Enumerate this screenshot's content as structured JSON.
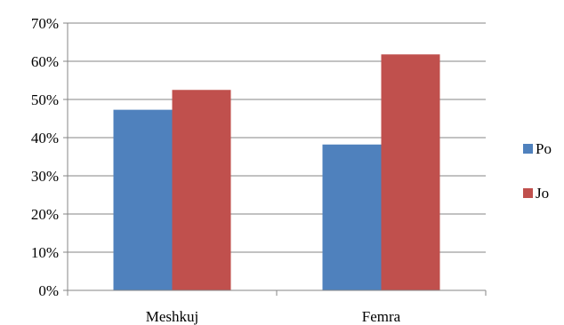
{
  "chart_data": {
    "type": "bar",
    "title": "",
    "xlabel": "",
    "ylabel": "",
    "categories": [
      "Meshkuj",
      "Femra"
    ],
    "series": [
      {
        "name": "Po",
        "values": [
          0.473,
          0.382
        ],
        "color": "#4f81bd"
      },
      {
        "name": "Jo",
        "values": [
          0.525,
          0.618
        ],
        "color": "#c0504d"
      }
    ],
    "ylim": [
      0,
      0.7
    ],
    "yticks": [
      "0%",
      "10%",
      "20%",
      "30%",
      "40%",
      "50%",
      "60%",
      "70%"
    ],
    "grid": true,
    "legend_position": "right"
  }
}
